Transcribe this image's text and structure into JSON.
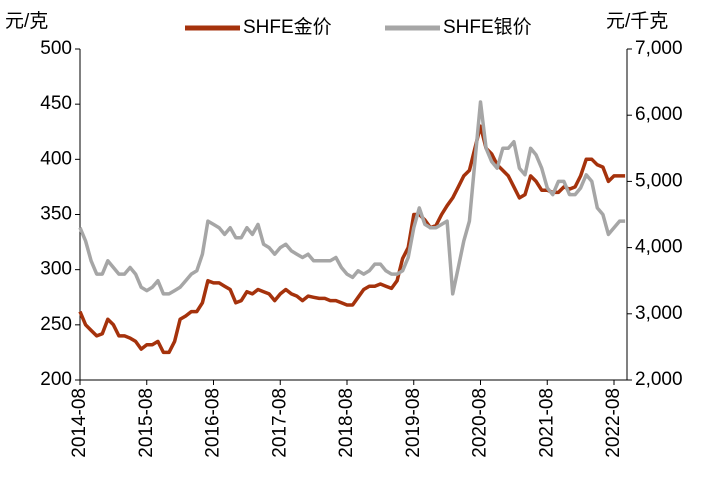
{
  "chart_data": {
    "type": "line",
    "ylabel": "元/克",
    "y2label": "元/千克",
    "categories": [
      "2014-08",
      null,
      null,
      null,
      null,
      null,
      null,
      null,
      null,
      null,
      null,
      null,
      "2015-08",
      null,
      null,
      null,
      null,
      null,
      null,
      null,
      null,
      null,
      null,
      null,
      "2016-08",
      null,
      null,
      null,
      null,
      null,
      null,
      null,
      null,
      null,
      null,
      null,
      "2017-08",
      null,
      null,
      null,
      null,
      null,
      null,
      null,
      null,
      null,
      null,
      null,
      "2018-08",
      null,
      null,
      null,
      null,
      null,
      null,
      null,
      null,
      null,
      null,
      null,
      "2019-08",
      null,
      null,
      null,
      null,
      null,
      null,
      null,
      null,
      null,
      null,
      null,
      "2020-08",
      null,
      null,
      null,
      null,
      null,
      null,
      null,
      null,
      null,
      null,
      null,
      "2021-08",
      null,
      null,
      null,
      null,
      null,
      null,
      null,
      null,
      null,
      null,
      null,
      "2022-08",
      null,
      null
    ],
    "series": [
      {
        "name": "SHFE金价",
        "color": "#a5320c",
        "axis": "y",
        "values": [
          262,
          250,
          245,
          240,
          242,
          255,
          250,
          240,
          240,
          238,
          235,
          228,
          232,
          232,
          235,
          225,
          225,
          235,
          255,
          258,
          262,
          262,
          270,
          290,
          288,
          288,
          285,
          282,
          270,
          272,
          280,
          278,
          282,
          280,
          278,
          272,
          278,
          282,
          278,
          276,
          272,
          276,
          275,
          274,
          274,
          272,
          272,
          270,
          268,
          268,
          275,
          282,
          285,
          285,
          287,
          285,
          283,
          290,
          310,
          320,
          350,
          350,
          345,
          338,
          340,
          350,
          358,
          365,
          375,
          385,
          390,
          410,
          430,
          410,
          405,
          395,
          390,
          385,
          375,
          365,
          368,
          385,
          380,
          372,
          372,
          370,
          370,
          375,
          373,
          375,
          385,
          400,
          400,
          395,
          393,
          380,
          385,
          385,
          385
        ]
      },
      {
        "name": "SHFE银价",
        "color": "#a6a6a6",
        "axis": "y2",
        "values": [
          4300,
          4100,
          3800,
          3600,
          3600,
          3800,
          3700,
          3600,
          3600,
          3700,
          3600,
          3400,
          3350,
          3400,
          3500,
          3300,
          3300,
          3350,
          3400,
          3500,
          3600,
          3650,
          3900,
          4400,
          4350,
          4300,
          4200,
          4300,
          4150,
          4150,
          4300,
          4200,
          4350,
          4050,
          4000,
          3900,
          4000,
          4050,
          3950,
          3900,
          3850,
          3900,
          3800,
          3800,
          3800,
          3800,
          3850,
          3700,
          3600,
          3550,
          3650,
          3600,
          3650,
          3750,
          3750,
          3650,
          3600,
          3600,
          3650,
          3850,
          4300,
          4600,
          4350,
          4300,
          4300,
          4350,
          4400,
          3300,
          3700,
          4100,
          4400,
          5300,
          6200,
          5500,
          5300,
          5200,
          5500,
          5500,
          5600,
          5200,
          5100,
          5500,
          5400,
          5200,
          4900,
          4800,
          5000,
          5000,
          4800,
          4800,
          4900,
          5100,
          5000,
          4600,
          4500,
          4200,
          4300,
          4400,
          4400
        ]
      }
    ],
    "ylim": [
      200,
      500
    ],
    "yticks": [
      200,
      250,
      300,
      350,
      400,
      450,
      500
    ],
    "y2lim": [
      2000,
      7000
    ],
    "y2ticks": [
      {
        "value": 2000,
        "label": "2,000"
      },
      {
        "value": 3000,
        "label": "3,000"
      },
      {
        "value": 4000,
        "label": "4,000"
      },
      {
        "value": 5000,
        "label": "5,000"
      },
      {
        "value": 6000,
        "label": "6,000"
      },
      {
        "value": 7000,
        "label": "7,000"
      }
    ],
    "legend": "top",
    "grid": false
  }
}
